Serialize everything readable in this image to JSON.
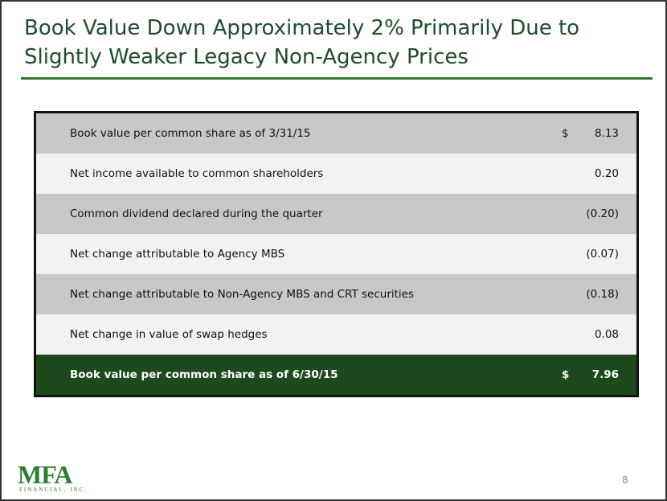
{
  "header": {
    "title_lines": [
      "Book Value Down Approximately 2% Primarily Due to",
      "Slightly Weaker Legacy Non-Agency Prices"
    ]
  },
  "table": {
    "rows": [
      {
        "label": "Book value per common share as of 3/31/15",
        "currency": "$",
        "value": "8.13"
      },
      {
        "label": "Net income available to common shareholders",
        "value": "0.20"
      },
      {
        "label": "Common dividend declared during the quarter",
        "value": "(0.20)"
      },
      {
        "label": "Net change attributable to Agency MBS",
        "value": "(0.07)"
      },
      {
        "label": "Net change attributable to Non-Agency MBS and CRT securities",
        "value": "(0.18)"
      },
      {
        "label": "Net change in value of swap hedges",
        "value": "0.08"
      },
      {
        "label": "Book value per common share as of 6/30/15",
        "currency": "$",
        "value": "7.96"
      }
    ]
  },
  "footer": {
    "logo": "MFA",
    "logo_sub": "FINANCIAL, INC.",
    "page_number": "8"
  }
}
